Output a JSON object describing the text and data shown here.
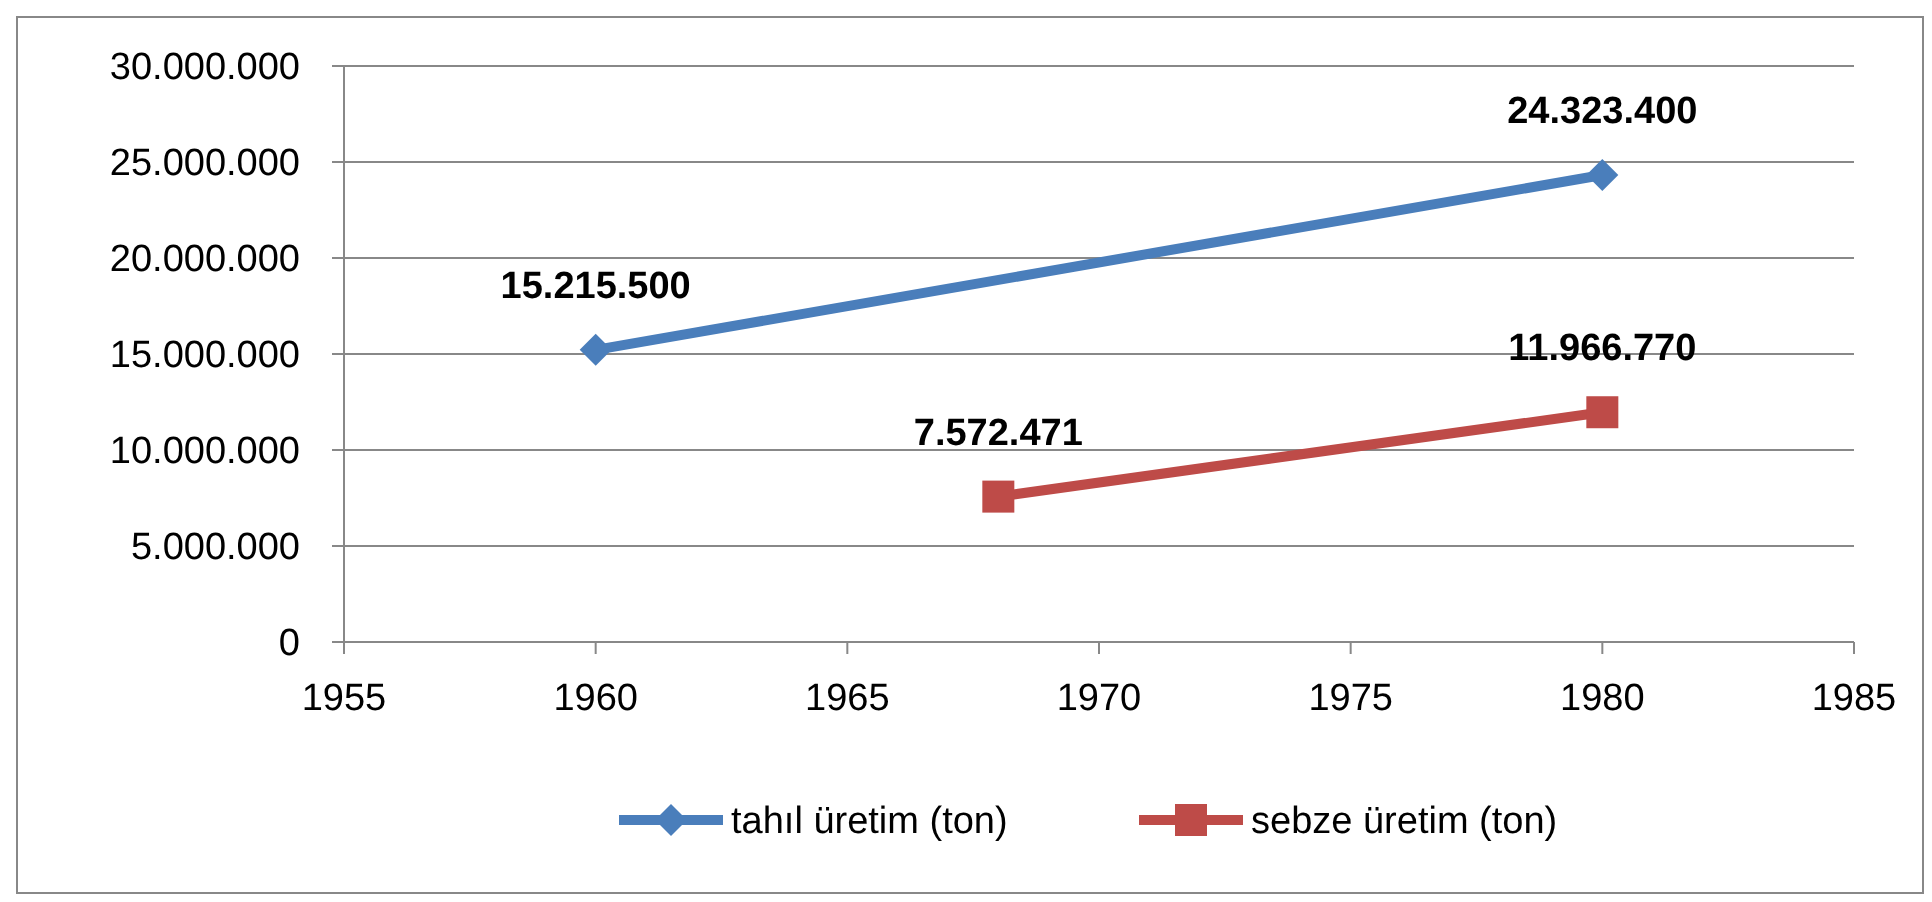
{
  "chart_data": {
    "type": "line",
    "xlim": [
      1955,
      1985
    ],
    "xticks": [
      1955,
      1960,
      1965,
      1970,
      1975,
      1980,
      1985
    ],
    "ylim": [
      0,
      30000000
    ],
    "yticks": [
      0,
      {
        "value": 5000000,
        "label": "5.000.000"
      },
      {
        "value": 10000000,
        "label": "10.000.000"
      },
      {
        "value": 15000000,
        "label": "15.000.000"
      },
      {
        "value": 20000000,
        "label": "20.000.000"
      },
      {
        "value": 25000000,
        "label": "25.000.000"
      },
      {
        "value": 30000000,
        "label": "30.000.000"
      }
    ],
    "grid": "y",
    "legend": "bottom",
    "line_style": "solid",
    "series": [
      {
        "name": "tahıl üretim (ton)",
        "color": "#4a7ebb",
        "marker": "diamond",
        "x": [
          1960,
          1980
        ],
        "values": [
          15215500,
          24323400
        ],
        "value_labels": [
          "15.215.500",
          "24.323.400"
        ]
      },
      {
        "name": "sebze üretim (ton)",
        "color": "#be4b48",
        "marker": "square",
        "x": [
          1968,
          1980
        ],
        "values": [
          7572471,
          11966770
        ],
        "value_labels": [
          "7.572.471",
          "11.966.770"
        ]
      }
    ]
  }
}
